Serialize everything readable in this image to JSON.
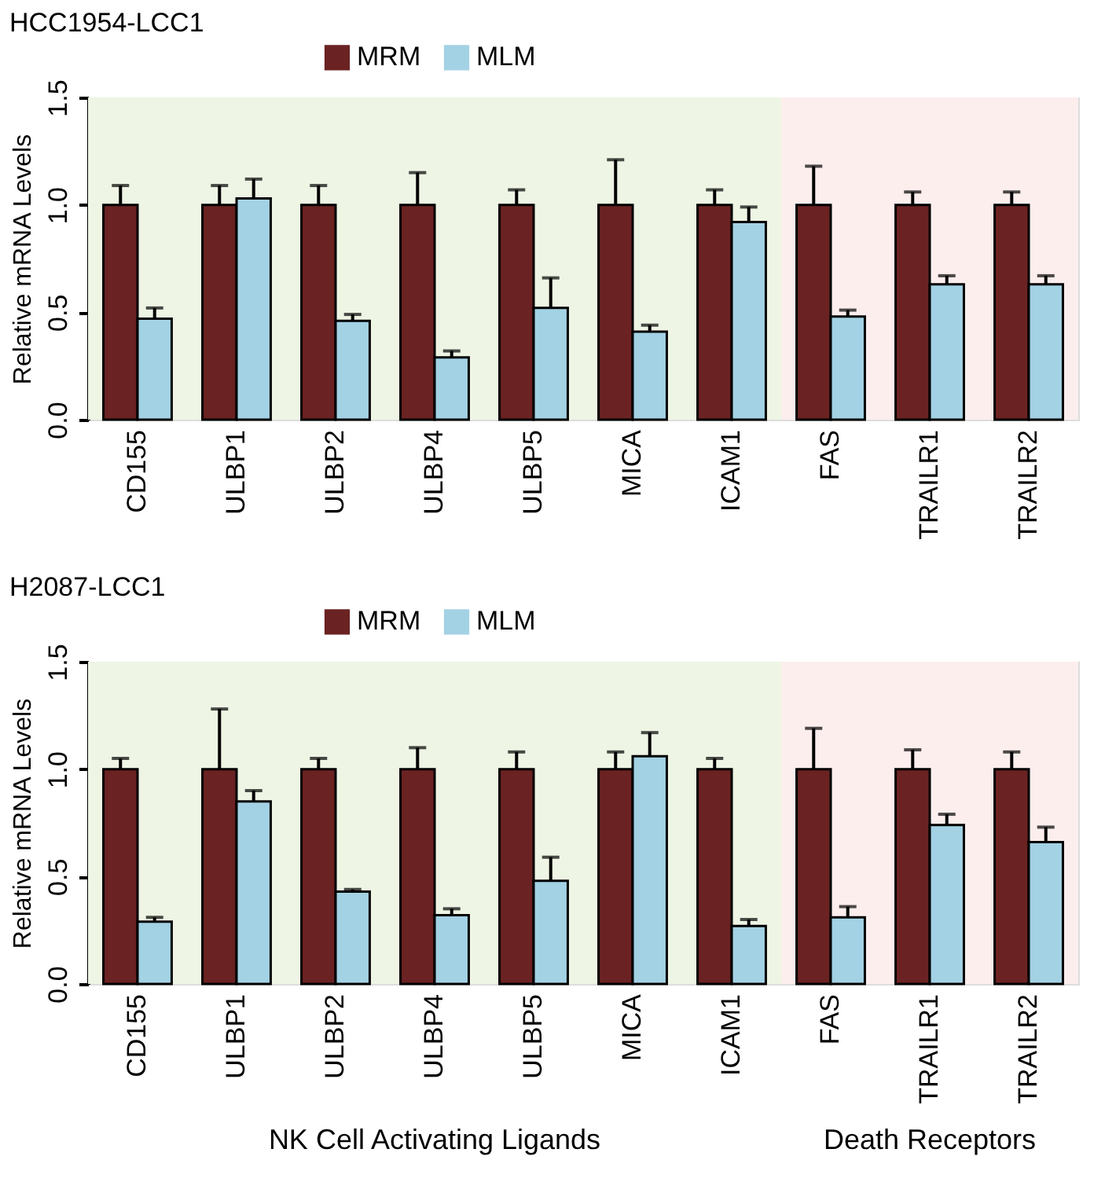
{
  "chart_data": [
    {
      "type": "bar",
      "title": "HCC1954-LCC1",
      "ylabel": "Relative mRNA Levels",
      "categories": [
        "CD155",
        "ULBP1",
        "ULBP2",
        "ULBP4",
        "ULBP5",
        "MICA",
        "ICAM1",
        "FAS",
        "TRAILR1",
        "TRAILR2"
      ],
      "series": [
        {
          "name": "MRM",
          "color": "#6b2222",
          "values": [
            1.0,
            1.0,
            1.0,
            1.0,
            1.0,
            1.0,
            1.0,
            1.0,
            1.0,
            1.0
          ],
          "errors": [
            [
              1.0,
              1.09
            ],
            [
              1.0,
              1.09
            ],
            [
              1.0,
              1.09
            ],
            [
              1.0,
              1.15
            ],
            [
              1.0,
              1.07
            ],
            [
              1.0,
              1.21
            ],
            [
              1.0,
              1.07
            ],
            [
              1.0,
              1.18
            ],
            [
              1.0,
              1.06
            ],
            [
              1.0,
              1.06
            ]
          ]
        },
        {
          "name": "MLM",
          "color": "#a3d2e4",
          "values": [
            0.47,
            1.03,
            0.46,
            0.29,
            0.52,
            0.41,
            0.92,
            0.48,
            0.63,
            0.63
          ],
          "errors": [
            [
              0.47,
              0.52
            ],
            [
              1.03,
              1.12
            ],
            [
              0.46,
              0.49
            ],
            [
              0.29,
              0.32
            ],
            [
              0.52,
              0.66
            ],
            [
              0.41,
              0.44
            ],
            [
              0.92,
              0.99
            ],
            [
              0.48,
              0.51
            ],
            [
              0.63,
              0.67
            ],
            [
              0.63,
              0.67
            ]
          ]
        }
      ],
      "ylim": [
        0,
        1.5
      ],
      "yticks": [
        {
          "value": 0,
          "label": "0.0"
        },
        {
          "value": 0.5,
          "label": "0.5"
        },
        {
          "value": 1,
          "label": "1.0"
        },
        {
          "value": 1.5,
          "label": "1.5"
        }
      ],
      "bands": [
        {
          "axis": "x",
          "from": "CD155",
          "to": "ICAM1",
          "color": "#eef5e4"
        },
        {
          "axis": "x",
          "from": "FAS",
          "to": "TRAILR2",
          "color": "#fdeeee"
        }
      ],
      "legend": "top",
      "grid": false
    },
    {
      "type": "bar",
      "title": "H2087-LCC1",
      "ylabel": "Relative mRNA Levels",
      "categories": [
        "CD155",
        "ULBP1",
        "ULBP2",
        "ULBP4",
        "ULBP5",
        "MICA",
        "ICAM1",
        "FAS",
        "TRAILR1",
        "TRAILR2"
      ],
      "series": [
        {
          "name": "MRM",
          "color": "#6b2222",
          "values": [
            1.0,
            1.0,
            1.0,
            1.0,
            1.0,
            1.0,
            1.0,
            1.0,
            1.0,
            1.0
          ],
          "errors": [
            [
              1.0,
              1.05
            ],
            [
              1.0,
              1.28
            ],
            [
              1.0,
              1.05
            ],
            [
              1.0,
              1.1
            ],
            [
              1.0,
              1.08
            ],
            [
              1.0,
              1.08
            ],
            [
              1.0,
              1.05
            ],
            [
              1.0,
              1.19
            ],
            [
              1.0,
              1.09
            ],
            [
              1.0,
              1.08
            ]
          ]
        },
        {
          "name": "MLM",
          "color": "#a3d2e4",
          "values": [
            0.29,
            0.85,
            0.43,
            0.32,
            0.48,
            1.06,
            0.27,
            0.31,
            0.74,
            0.66
          ],
          "errors": [
            [
              0.29,
              0.31
            ],
            [
              0.85,
              0.9
            ],
            [
              0.43,
              0.44
            ],
            [
              0.32,
              0.35
            ],
            [
              0.48,
              0.59
            ],
            [
              1.06,
              1.17
            ],
            [
              0.27,
              0.3
            ],
            [
              0.31,
              0.36
            ],
            [
              0.74,
              0.79
            ],
            [
              0.66,
              0.73
            ]
          ]
        }
      ],
      "ylim": [
        0,
        1.5
      ],
      "yticks": [
        {
          "value": 0,
          "label": "0.0"
        },
        {
          "value": 0.5,
          "label": "0.5"
        },
        {
          "value": 1,
          "label": "1.0"
        },
        {
          "value": 1.5,
          "label": "1.5"
        }
      ],
      "bands": [
        {
          "axis": "x",
          "from": "CD155",
          "to": "ICAM1",
          "color": "#eef5e4"
        },
        {
          "axis": "x",
          "from": "FAS",
          "to": "TRAILR2",
          "color": "#fdeeee"
        }
      ],
      "annotations": [
        "NK Cell Activating Ligands",
        "Death Receptors"
      ],
      "legend": "top",
      "grid": false
    }
  ]
}
